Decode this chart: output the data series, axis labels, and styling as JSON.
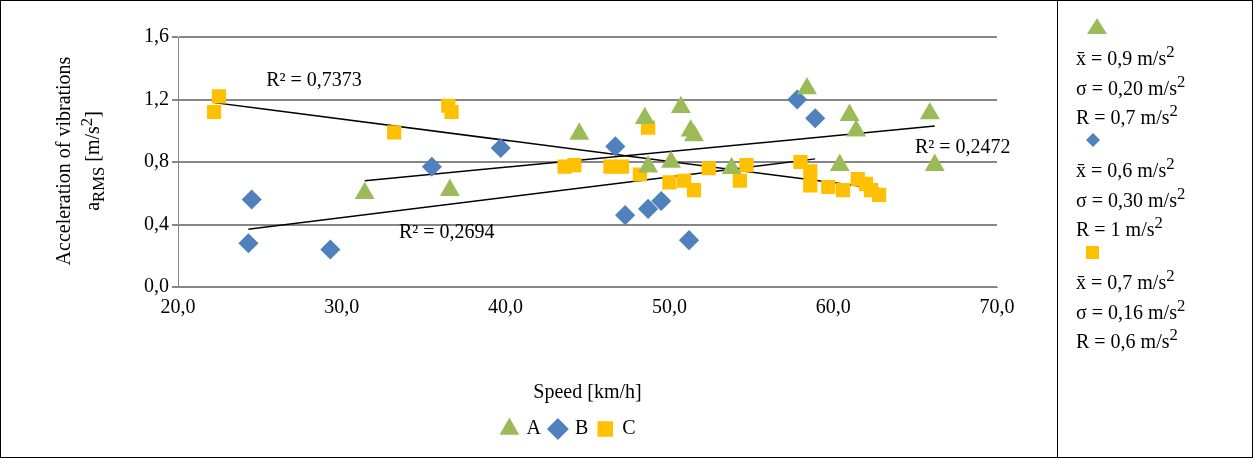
{
  "chart_data": {
    "type": "scatter",
    "xlabel": "Speed [km/h]",
    "ylabel": "Acceleration of vibrations a$_{RMS}$ [m/s$^{2}$]",
    "xlim": [
      20,
      70
    ],
    "xticks": [
      {
        "value": 20,
        "label": "20,0"
      },
      {
        "value": 30,
        "label": "30,0"
      },
      {
        "value": 40,
        "label": "40,0"
      },
      {
        "value": 50,
        "label": "50,0"
      },
      {
        "value": 60,
        "label": "60,0"
      },
      {
        "value": 70,
        "label": "70,0"
      }
    ],
    "ylim": [
      0,
      1.6
    ],
    "yticks": [
      {
        "value": 0,
        "label": "0,0"
      },
      {
        "value": 0.4,
        "label": "0,4"
      },
      {
        "value": 0.8,
        "label": "0,8"
      },
      {
        "value": 1.2,
        "label": "1,2"
      },
      {
        "value": 1.6,
        "label": "1,6"
      }
    ],
    "grid": "y",
    "legend": "bottom",
    "series": [
      {
        "name": "A",
        "color": "#9bbb59",
        "marker": "triangle",
        "x": [
          31.4,
          36.6,
          44.5,
          48.5,
          48.7,
          50.1,
          50.7,
          51.3,
          51.5,
          53.8,
          58.4,
          60.4,
          61.0,
          61.4,
          65.9,
          66.2
        ],
        "values": [
          0.6,
          0.62,
          0.98,
          1.08,
          0.77,
          0.8,
          1.15,
          1.0,
          0.97,
          0.76,
          1.27,
          0.78,
          1.1,
          1.0,
          1.11,
          0.78
        ]
      },
      {
        "name": "B",
        "color": "#4f81bd",
        "marker": "diamond",
        "x": [
          24.5,
          24.3,
          29.3,
          35.5,
          39.7,
          46.7,
          47.3,
          48.7,
          49.5,
          51.2,
          57.8,
          58.9
        ],
        "values": [
          0.56,
          0.28,
          0.24,
          0.77,
          0.89,
          0.9,
          0.46,
          0.5,
          0.55,
          0.3,
          1.2,
          1.08
        ]
      },
      {
        "name": "C",
        "color": "#ffc000",
        "marker": "square",
        "x": [
          22.2,
          22.5,
          33.2,
          36.5,
          36.7,
          43.6,
          44.2,
          46.4,
          47.1,
          48.2,
          48.7,
          50.0,
          50.9,
          51.5,
          52.4,
          54.3,
          54.7,
          58.0,
          58.6,
          58.6,
          59.7,
          60.6,
          61.5,
          62.0,
          62.3,
          62.8
        ],
        "values": [
          1.12,
          1.22,
          0.99,
          1.16,
          1.12,
          0.77,
          0.78,
          0.77,
          0.77,
          0.72,
          1.02,
          0.67,
          0.68,
          0.62,
          0.76,
          0.68,
          0.78,
          0.8,
          0.74,
          0.65,
          0.64,
          0.62,
          0.69,
          0.66,
          0.62,
          0.59
        ]
      },
      {
        "type": "line",
        "color": "#000000",
        "marker": "none",
        "x": [
          22.2,
          62.8
        ],
        "values": [
          1.18,
          0.63
        ]
      },
      {
        "type": "line",
        "color": "#000000",
        "marker": "none",
        "x": [
          24.3,
          58.9
        ],
        "values": [
          0.37,
          0.82
        ]
      },
      {
        "type": "line",
        "color": "#000000",
        "marker": "none",
        "x": [
          31.4,
          66.2
        ],
        "values": [
          0.68,
          1.03
        ]
      }
    ],
    "annotations": [
      "R² = 0,7373",
      "R² = 0,2694",
      "R² = 0,2472",
      "x̄ = 0,9 m/s$^{2}$",
      "σ = 0,20 m/s$^{2}$",
      "R = 0,7 m/s$^{2}$",
      "x̄ = 0,6 m/s$^{2}$",
      "σ = 0,30 m/s$^{2}$",
      "R = 1 m/s$^{2}$",
      "x̄ = 0,7 m/s$^{2}$",
      "σ = 0,16 m/s$^{2}$",
      "R = 0,6 m/s$^{2}$"
    ]
  }
}
